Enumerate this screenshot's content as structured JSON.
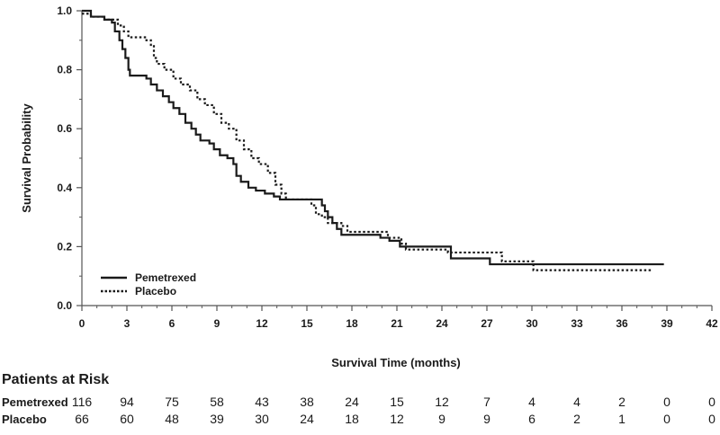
{
  "chart_data": {
    "type": "line",
    "subtype": "kaplan-meier",
    "title": "",
    "xlabel": "Survival Time (months)",
    "ylabel": "Survival Probability",
    "xlim": [
      0,
      42
    ],
    "ylim": [
      0,
      1.0
    ],
    "x_ticks": [
      0,
      3,
      6,
      9,
      12,
      15,
      18,
      21,
      24,
      27,
      30,
      33,
      36,
      39,
      42
    ],
    "x_tick_labels": [
      "0",
      "3",
      "6",
      "9",
      "12",
      "15",
      "18",
      "21",
      "24",
      "27",
      "30",
      "33",
      "36",
      "39",
      "42"
    ],
    "y_ticks": [
      0.0,
      0.2,
      0.4,
      0.6,
      0.8,
      1.0
    ],
    "y_tick_labels": [
      "0.0",
      "0.2",
      "0.4",
      "0.6",
      "0.8",
      "1.0"
    ],
    "legend_position": "bottom-left",
    "series": [
      {
        "name": "Pemetrexed",
        "style": "solid",
        "color": "#1a1a1a",
        "steps": [
          [
            0,
            1.0
          ],
          [
            0.6,
            0.98
          ],
          [
            1.5,
            0.97
          ],
          [
            2.0,
            0.96
          ],
          [
            2.2,
            0.93
          ],
          [
            2.5,
            0.9
          ],
          [
            2.7,
            0.87
          ],
          [
            2.9,
            0.84
          ],
          [
            3.1,
            0.8
          ],
          [
            3.2,
            0.78
          ],
          [
            4.3,
            0.77
          ],
          [
            4.6,
            0.75
          ],
          [
            5.0,
            0.73
          ],
          [
            5.4,
            0.71
          ],
          [
            5.8,
            0.69
          ],
          [
            6.1,
            0.67
          ],
          [
            6.5,
            0.65
          ],
          [
            6.9,
            0.62
          ],
          [
            7.3,
            0.6
          ],
          [
            7.6,
            0.58
          ],
          [
            7.9,
            0.56
          ],
          [
            8.5,
            0.55
          ],
          [
            8.8,
            0.53
          ],
          [
            9.2,
            0.51
          ],
          [
            9.7,
            0.5
          ],
          [
            10.1,
            0.48
          ],
          [
            10.3,
            0.44
          ],
          [
            10.6,
            0.42
          ],
          [
            11.1,
            0.4
          ],
          [
            11.6,
            0.39
          ],
          [
            12.2,
            0.38
          ],
          [
            12.8,
            0.37
          ],
          [
            13.2,
            0.36
          ],
          [
            16.0,
            0.34
          ],
          [
            16.2,
            0.32
          ],
          [
            16.4,
            0.3
          ],
          [
            16.7,
            0.28
          ],
          [
            17.0,
            0.26
          ],
          [
            17.3,
            0.24
          ],
          [
            19.9,
            0.23
          ],
          [
            20.5,
            0.22
          ],
          [
            21.2,
            0.2
          ],
          [
            24.6,
            0.16
          ],
          [
            27.2,
            0.14
          ],
          [
            38.8,
            0.14
          ]
        ]
      },
      {
        "name": "Placebo",
        "style": "dotted",
        "color": "#1a1a1a",
        "steps": [
          [
            0,
            0.99
          ],
          [
            0.6,
            0.98
          ],
          [
            1.5,
            0.97
          ],
          [
            2.4,
            0.95
          ],
          [
            2.8,
            0.93
          ],
          [
            3.1,
            0.91
          ],
          [
            4.3,
            0.9
          ],
          [
            4.6,
            0.88
          ],
          [
            4.8,
            0.84
          ],
          [
            5.0,
            0.82
          ],
          [
            5.5,
            0.8
          ],
          [
            6.1,
            0.77
          ],
          [
            6.6,
            0.75
          ],
          [
            7.2,
            0.73
          ],
          [
            7.7,
            0.7
          ],
          [
            8.2,
            0.68
          ],
          [
            8.8,
            0.65
          ],
          [
            9.3,
            0.62
          ],
          [
            9.8,
            0.6
          ],
          [
            10.3,
            0.56
          ],
          [
            10.8,
            0.53
          ],
          [
            11.3,
            0.5
          ],
          [
            11.8,
            0.48
          ],
          [
            12.4,
            0.45
          ],
          [
            12.9,
            0.41
          ],
          [
            13.3,
            0.38
          ],
          [
            13.6,
            0.36
          ],
          [
            15.3,
            0.34
          ],
          [
            15.6,
            0.31
          ],
          [
            16.0,
            0.3
          ],
          [
            16.4,
            0.28
          ],
          [
            17.3,
            0.27
          ],
          [
            17.7,
            0.25
          ],
          [
            20.4,
            0.23
          ],
          [
            21.3,
            0.21
          ],
          [
            21.6,
            0.19
          ],
          [
            24.4,
            0.18
          ],
          [
            28.0,
            0.15
          ],
          [
            30.1,
            0.12
          ],
          [
            38.0,
            0.12
          ]
        ]
      }
    ],
    "risk_table": {
      "title": "Patients at Risk",
      "times": [
        0,
        3,
        6,
        9,
        12,
        15,
        18,
        21,
        24,
        27,
        30,
        33,
        36,
        39,
        42
      ],
      "rows": [
        {
          "label": "Pemetrexed",
          "values": [
            "116",
            "94",
            "75",
            "58",
            "43",
            "38",
            "24",
            "15",
            "12",
            "7",
            "4",
            "4",
            "2",
            "0",
            "0"
          ]
        },
        {
          "label": "Placebo",
          "values": [
            "66",
            "60",
            "48",
            "39",
            "30",
            "24",
            "18",
            "12",
            "9",
            "9",
            "6",
            "2",
            "1",
            "0",
            "0"
          ]
        }
      ]
    }
  }
}
